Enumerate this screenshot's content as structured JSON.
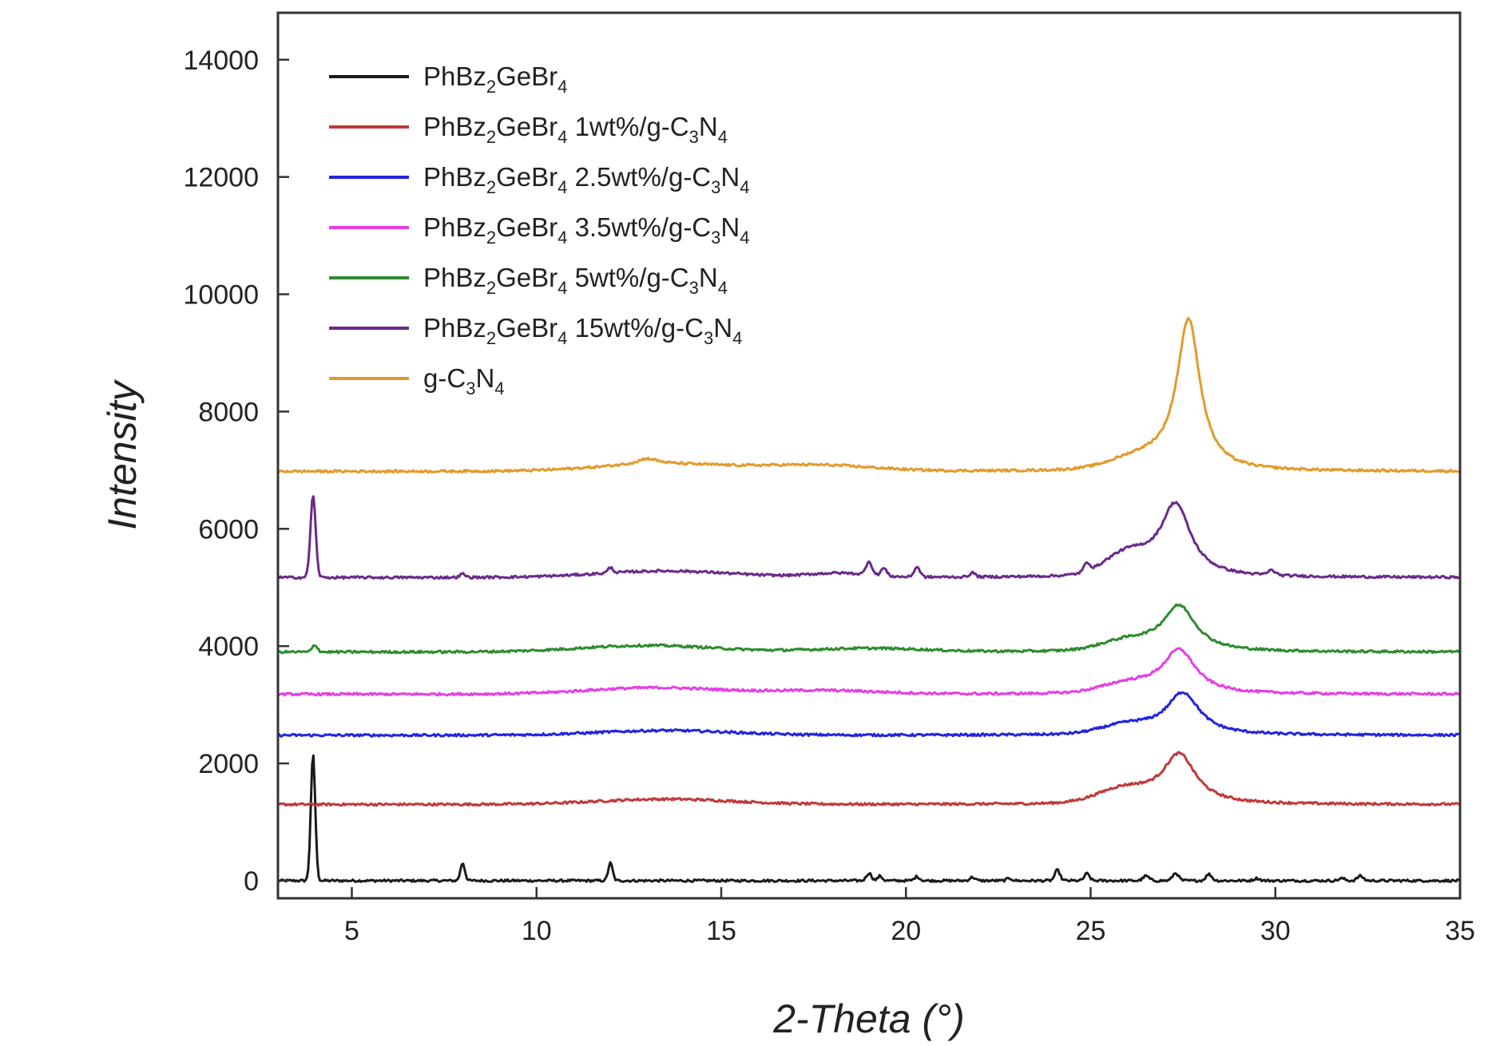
{
  "chart_data": {
    "type": "line",
    "xlabel": "2-Theta (°)",
    "ylabel": "Intensity",
    "xlim": [
      3,
      35
    ],
    "ylim": [
      -300,
      14800
    ],
    "x_ticks": [
      5,
      10,
      15,
      20,
      25,
      30,
      35
    ],
    "y_ticks": [
      0,
      2000,
      4000,
      6000,
      8000,
      10000,
      12000,
      14000
    ],
    "grid": false,
    "legend_position": "top-left",
    "series": [
      {
        "name": "PhBz2GeBr4",
        "legend": {
          "base": "PhBz",
          "parts": [
            [
              "sub",
              "2"
            ],
            [
              "t",
              "GeBr"
            ],
            [
              "sub",
              "4"
            ]
          ]
        },
        "color": "#1a1a1a",
        "baseline": 0,
        "peaks": [
          [
            3.95,
            2150,
            0.06
          ],
          [
            8.0,
            300,
            0.06
          ],
          [
            12.0,
            300,
            0.06
          ],
          [
            19.0,
            130,
            0.07
          ],
          [
            19.3,
            80,
            0.06
          ],
          [
            20.3,
            70,
            0.07
          ],
          [
            21.8,
            60,
            0.07
          ],
          [
            22.8,
            40,
            0.07
          ],
          [
            24.1,
            180,
            0.07
          ],
          [
            24.9,
            120,
            0.07
          ],
          [
            26.5,
            80,
            0.08
          ],
          [
            27.3,
            130,
            0.08
          ],
          [
            28.2,
            110,
            0.08
          ],
          [
            29.5,
            40,
            0.08
          ],
          [
            31.8,
            40,
            0.08
          ],
          [
            32.3,
            80,
            0.08
          ]
        ],
        "humps": []
      },
      {
        "name": "PhBz2GeBr4 1wt%/g-C3N4",
        "legend": {
          "base": "PhBz",
          "parts": [
            [
              "sub",
              "2"
            ],
            [
              "t",
              "GeBr"
            ],
            [
              "sub",
              "4"
            ],
            [
              "t",
              " 1wt%/g-C"
            ],
            [
              "sub",
              "3"
            ],
            [
              "t",
              "N"
            ],
            [
              "sub",
              "4"
            ]
          ]
        },
        "color": "#c0393b",
        "baseline": 1300,
        "peaks": [
          [
            27.4,
            850,
            0.55
          ]
        ],
        "humps": [
          [
            13.5,
            90,
            1.8
          ],
          [
            25.9,
            230,
            0.7
          ]
        ]
      },
      {
        "name": "PhBz2GeBr4 2.5wt%/g-C3N4",
        "legend": {
          "base": "PhBz",
          "parts": [
            [
              "sub",
              "2"
            ],
            [
              "t",
              "GeBr"
            ],
            [
              "sub",
              "4"
            ],
            [
              "t",
              " 2.5wt%/g-C"
            ],
            [
              "sub",
              "3"
            ],
            [
              "t",
              "N"
            ],
            [
              "sub",
              "4"
            ]
          ]
        },
        "color": "#2323e0",
        "baseline": 2480,
        "peaks": [
          [
            27.5,
            720,
            0.55
          ]
        ],
        "humps": [
          [
            13.5,
            80,
            1.8
          ],
          [
            26.0,
            150,
            0.7
          ]
        ]
      },
      {
        "name": "PhBz2GeBr4 3.5wt%/g-C3N4",
        "legend": {
          "base": "PhBz",
          "parts": [
            [
              "sub",
              "2"
            ],
            [
              "t",
              "GeBr"
            ],
            [
              "sub",
              "4"
            ],
            [
              "t",
              " 3.5wt%/g-C"
            ],
            [
              "sub",
              "3"
            ],
            [
              "t",
              "N"
            ],
            [
              "sub",
              "4"
            ]
          ]
        },
        "color": "#e53ee5",
        "baseline": 3180,
        "peaks": [
          [
            27.4,
            750,
            0.55
          ]
        ],
        "humps": [
          [
            13.2,
            110,
            1.8
          ],
          [
            17.8,
            60,
            1.5
          ],
          [
            26.0,
            150,
            0.7
          ]
        ]
      },
      {
        "name": "PhBz2GeBr4 5wt%/g-C3N4",
        "legend": {
          "base": "PhBz",
          "parts": [
            [
              "sub",
              "2"
            ],
            [
              "t",
              "GeBr"
            ],
            [
              "sub",
              "4"
            ],
            [
              "t",
              " 5wt%/g-C"
            ],
            [
              "sub",
              "3"
            ],
            [
              "t",
              "N"
            ],
            [
              "sub",
              "4"
            ]
          ]
        },
        "color": "#2e8b2e",
        "baseline": 3900,
        "peaks": [
          [
            4.0,
            120,
            0.07
          ],
          [
            27.4,
            780,
            0.55
          ]
        ],
        "humps": [
          [
            13.0,
            110,
            1.8
          ],
          [
            19.0,
            60,
            1.5
          ],
          [
            26.0,
            160,
            0.7
          ]
        ]
      },
      {
        "name": "PhBz2GeBr4 15wt%/g-C3N4",
        "legend": {
          "base": "PhBz",
          "parts": [
            [
              "sub",
              "2"
            ],
            [
              "t",
              "GeBr"
            ],
            [
              "sub",
              "4"
            ],
            [
              "t",
              " 15wt%/g-C"
            ],
            [
              "sub",
              "3"
            ],
            [
              "t",
              "N"
            ],
            [
              "sub",
              "4"
            ]
          ]
        },
        "color": "#6a2a8a",
        "baseline": 5170,
        "peaks": [
          [
            3.95,
            1400,
            0.07
          ],
          [
            8.0,
            60,
            0.07
          ],
          [
            12.0,
            90,
            0.07
          ],
          [
            19.0,
            230,
            0.08
          ],
          [
            19.4,
            130,
            0.08
          ],
          [
            20.3,
            170,
            0.08
          ],
          [
            21.8,
            70,
            0.08
          ],
          [
            24.9,
            140,
            0.08
          ],
          [
            27.3,
            1250,
            0.5
          ],
          [
            29.9,
            80,
            0.1
          ]
        ],
        "humps": [
          [
            13.5,
            110,
            1.8
          ],
          [
            18.2,
            70,
            0.8
          ],
          [
            26.0,
            350,
            0.6
          ]
        ]
      },
      {
        "name": "g-C3N4",
        "legend": {
          "base": "g-C",
          "parts": [
            [
              "sub",
              "3"
            ],
            [
              "t",
              "N"
            ],
            [
              "sub",
              "4"
            ]
          ]
        },
        "color": "#e39a2b",
        "baseline": 6980,
        "peaks": [
          [
            27.65,
            2550,
            0.38
          ],
          [
            13.0,
            100,
            0.35
          ]
        ],
        "humps": [
          [
            13.5,
            120,
            1.8
          ],
          [
            17.6,
            100,
            1.5
          ],
          [
            26.4,
            200,
            0.8
          ]
        ]
      }
    ]
  }
}
